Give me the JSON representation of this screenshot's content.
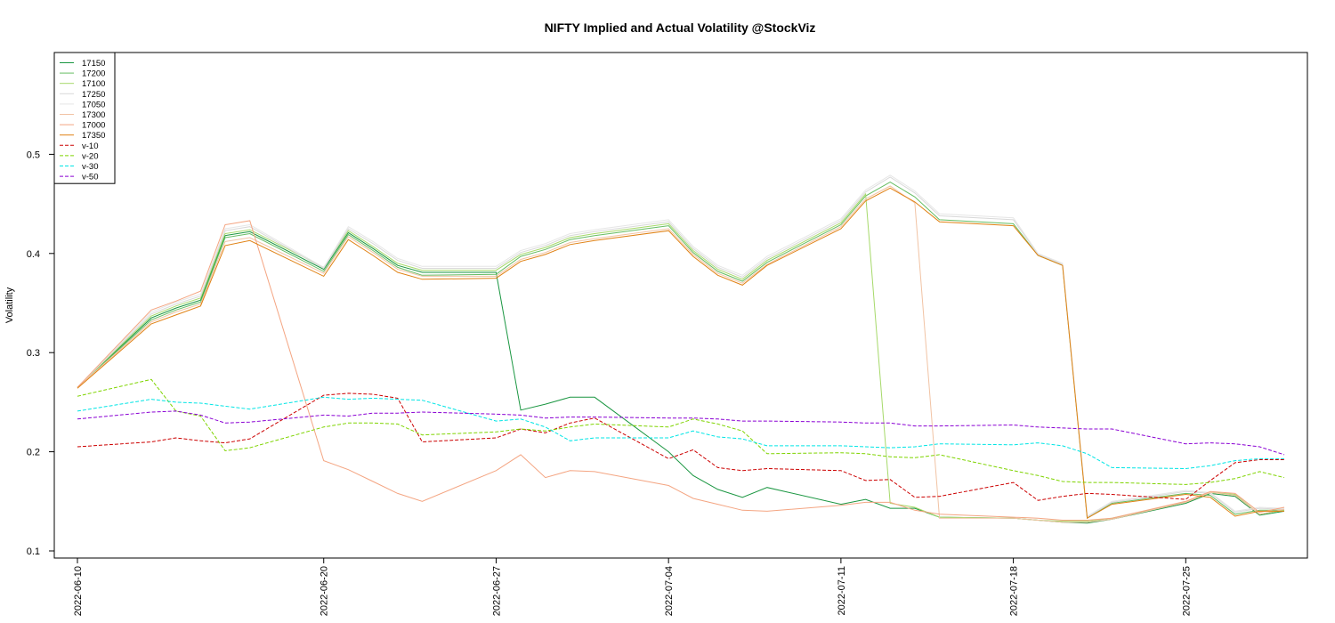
{
  "chart_data": {
    "type": "line",
    "title": "NIFTY Implied and Actual Volatility @StockViz",
    "xlabel": "",
    "ylabel": "Volatility",
    "ylim": [
      0.1,
      0.6
    ],
    "yticks": [
      "0.1",
      "0.2",
      "0.3",
      "0.4",
      "0.5"
    ],
    "xticks": [
      "2022-06-10",
      "2022-06-20",
      "2022-06-27",
      "2022-07-04",
      "2022-07-11",
      "2022-07-18",
      "2022-07-25"
    ],
    "grid": false,
    "legend_position": "top-left",
    "x": [
      "2022-06-10",
      "2022-06-13",
      "2022-06-14",
      "2022-06-15",
      "2022-06-16",
      "2022-06-17",
      "2022-06-20",
      "2022-06-21",
      "2022-06-22",
      "2022-06-23",
      "2022-06-24",
      "2022-06-27",
      "2022-06-28",
      "2022-06-29",
      "2022-06-30",
      "2022-07-01",
      "2022-07-04",
      "2022-07-05",
      "2022-07-06",
      "2022-07-07",
      "2022-07-08",
      "2022-07-11",
      "2022-07-12",
      "2022-07-13",
      "2022-07-14",
      "2022-07-15",
      "2022-07-18",
      "2022-07-19",
      "2022-07-20",
      "2022-07-21",
      "2022-07-22",
      "2022-07-25",
      "2022-07-26",
      "2022-07-27",
      "2022-07-28",
      "2022-07-29"
    ],
    "series": [
      {
        "name": "17150",
        "color": "#1a9641",
        "dash": "solid",
        "values": [
          0.265,
          0.335,
          0.345,
          0.353,
          0.418,
          0.422,
          0.384,
          0.421,
          0.405,
          0.388,
          0.381,
          0.381,
          0.242,
          0.248,
          0.255,
          0.255,
          0.2,
          0.176,
          0.162,
          0.154,
          0.164,
          0.147,
          0.152,
          0.143,
          0.143,
          0.134,
          0.133,
          0.131,
          0.129,
          0.128,
          0.132,
          0.148,
          0.158,
          0.155,
          0.136,
          0.14
        ]
      },
      {
        "name": "17200",
        "color": "#66bd63",
        "dash": "solid",
        "values": [
          0.265,
          0.333,
          0.343,
          0.351,
          0.416,
          0.42,
          0.382,
          0.419,
          0.403,
          0.386,
          0.378,
          0.379,
          0.397,
          0.404,
          0.414,
          0.418,
          0.428,
          0.401,
          0.382,
          0.372,
          0.391,
          0.429,
          0.458,
          0.472,
          0.457,
          0.434,
          0.43,
          0.398,
          0.388,
          0.133,
          0.148,
          0.158,
          0.156,
          0.137,
          0.141,
          0.141
        ]
      },
      {
        "name": "17100",
        "color": "#a6d96a",
        "dash": "solid",
        "values": [
          0.265,
          0.337,
          0.347,
          0.355,
          0.42,
          0.424,
          0.386,
          0.423,
          0.407,
          0.39,
          0.383,
          0.383,
          0.399,
          0.406,
          0.416,
          0.42,
          0.43,
          0.403,
          0.384,
          0.374,
          0.393,
          0.431,
          0.46,
          0.148,
          0.144,
          0.134,
          0.133,
          0.131,
          0.13,
          0.13,
          0.133,
          0.149,
          0.159,
          0.157,
          0.137,
          0.141
        ]
      },
      {
        "name": "17250",
        "color": "#d9d9d9",
        "dash": "solid",
        "values": [
          0.265,
          0.339,
          0.349,
          0.357,
          0.423,
          0.427,
          0.385,
          0.425,
          0.41,
          0.393,
          0.385,
          0.385,
          0.401,
          0.408,
          0.418,
          0.422,
          0.432,
          0.405,
          0.386,
          0.376,
          0.395,
          0.433,
          0.462,
          0.477,
          0.461,
          0.438,
          0.434,
          0.399,
          0.389,
          0.134,
          0.149,
          0.16,
          0.158,
          0.139,
          0.143,
          0.142
        ]
      },
      {
        "name": "17050",
        "color": "#e6e6e6",
        "dash": "solid",
        "values": [
          0.265,
          0.341,
          0.351,
          0.359,
          0.425,
          0.429,
          0.386,
          0.427,
          0.412,
          0.395,
          0.387,
          0.387,
          0.403,
          0.41,
          0.42,
          0.424,
          0.434,
          0.407,
          0.388,
          0.378,
          0.397,
          0.435,
          0.464,
          0.479,
          0.463,
          0.44,
          0.436,
          0.4,
          0.39,
          0.135,
          0.15,
          0.161,
          0.159,
          0.14,
          0.144,
          0.143
        ]
      },
      {
        "name": "17300",
        "color": "#f1c3a4",
        "dash": "solid",
        "values": [
          0.265,
          0.331,
          0.341,
          0.349,
          0.412,
          0.416,
          0.38,
          0.417,
          0.401,
          0.384,
          0.377,
          0.377,
          0.394,
          0.401,
          0.411,
          0.415,
          0.425,
          0.399,
          0.38,
          0.37,
          0.389,
          0.427,
          0.455,
          0.468,
          0.451,
          0.133,
          0.133,
          0.131,
          0.129,
          0.129,
          0.132,
          0.149,
          0.159,
          0.156,
          0.137,
          0.142
        ]
      },
      {
        "name": "17000",
        "color": "#f4a582",
        "dash": "solid",
        "values": [
          0.265,
          0.343,
          0.352,
          0.362,
          0.429,
          0.433,
          0.191,
          0.182,
          0.17,
          0.158,
          0.15,
          0.181,
          0.197,
          0.174,
          0.181,
          0.18,
          0.166,
          0.153,
          0.147,
          0.141,
          0.14,
          0.146,
          0.149,
          0.149,
          0.141,
          0.137,
          0.134,
          0.133,
          0.131,
          0.131,
          0.133,
          0.15,
          0.16,
          0.158,
          0.139,
          0.144
        ]
      },
      {
        "name": "17350",
        "color": "#e08214",
        "dash": "solid",
        "values": [
          0.264,
          0.329,
          0.338,
          0.347,
          0.408,
          0.413,
          0.377,
          0.414,
          0.398,
          0.381,
          0.374,
          0.375,
          0.392,
          0.399,
          0.409,
          0.413,
          0.423,
          0.397,
          0.378,
          0.368,
          0.388,
          0.425,
          0.453,
          0.466,
          0.452,
          0.432,
          0.428,
          0.398,
          0.388,
          0.133,
          0.147,
          0.157,
          0.154,
          0.135,
          0.14,
          0.14
        ]
      },
      {
        "name": "v-10",
        "color": "#cc0000",
        "dash": "dash",
        "values": [
          0.205,
          0.21,
          0.214,
          0.211,
          0.209,
          0.213,
          0.257,
          0.259,
          0.258,
          0.254,
          0.21,
          0.214,
          0.223,
          0.219,
          0.229,
          0.234,
          0.193,
          0.202,
          0.184,
          0.181,
          0.183,
          0.181,
          0.171,
          0.172,
          0.154,
          0.155,
          0.169,
          0.151,
          0.155,
          0.158,
          0.157,
          0.152,
          0.171,
          0.189,
          0.192,
          0.192
        ]
      },
      {
        "name": "v-20",
        "color": "#7fd400",
        "dash": "dash",
        "values": [
          0.256,
          0.273,
          0.241,
          0.236,
          0.201,
          0.204,
          0.225,
          0.229,
          0.229,
          0.228,
          0.217,
          0.22,
          0.223,
          0.221,
          0.225,
          0.228,
          0.225,
          0.233,
          0.228,
          0.221,
          0.198,
          0.199,
          0.198,
          0.195,
          0.194,
          0.197,
          0.181,
          0.176,
          0.17,
          0.169,
          0.169,
          0.167,
          0.169,
          0.173,
          0.18,
          0.174
        ]
      },
      {
        "name": "v-30",
        "color": "#00e5e5",
        "dash": "dash",
        "values": [
          0.241,
          0.253,
          0.25,
          0.249,
          0.246,
          0.243,
          0.255,
          0.253,
          0.254,
          0.253,
          0.252,
          0.231,
          0.233,
          0.225,
          0.211,
          0.214,
          0.214,
          0.221,
          0.215,
          0.213,
          0.206,
          0.206,
          0.205,
          0.204,
          0.205,
          0.208,
          0.207,
          0.209,
          0.206,
          0.198,
          0.184,
          0.183,
          0.186,
          0.191,
          0.193,
          0.193
        ]
      },
      {
        "name": "v-50",
        "color": "#8a00d4",
        "dash": "dash",
        "values": [
          0.233,
          0.24,
          0.241,
          0.237,
          0.229,
          0.23,
          0.237,
          0.236,
          0.239,
          0.239,
          0.24,
          0.238,
          0.237,
          0.234,
          0.235,
          0.235,
          0.234,
          0.234,
          0.233,
          0.231,
          0.231,
          0.23,
          0.229,
          0.229,
          0.226,
          0.226,
          0.227,
          0.225,
          0.224,
          0.223,
          0.223,
          0.208,
          0.209,
          0.208,
          0.205,
          0.197
        ]
      }
    ]
  }
}
